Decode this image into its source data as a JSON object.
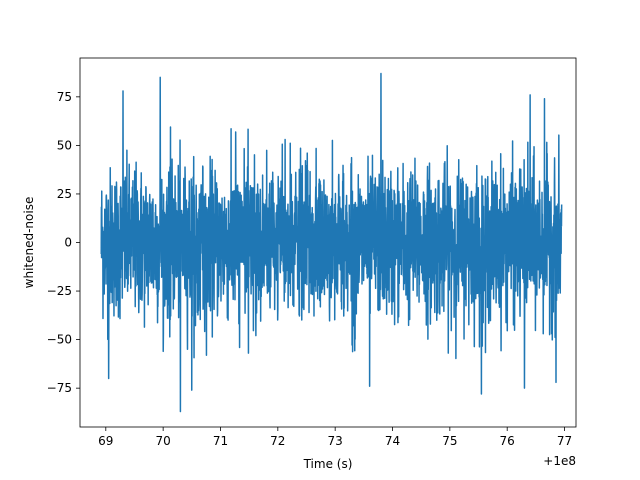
{
  "chart_data": {
    "type": "line",
    "title": "",
    "xlabel": "Time (s)",
    "ylabel": "whitened-noise",
    "x_offset_label": "+1e8",
    "xlim": [
      68.55,
      77.2
    ],
    "ylim": [
      -95,
      95
    ],
    "x_ticks": [
      {
        "value": 69,
        "label": "69"
      },
      {
        "value": 70,
        "label": "70"
      },
      {
        "value": 71,
        "label": "71"
      },
      {
        "value": 72,
        "label": "72"
      },
      {
        "value": 73,
        "label": "73"
      },
      {
        "value": 74,
        "label": "74"
      },
      {
        "value": 75,
        "label": "75"
      },
      {
        "value": 76,
        "label": "76"
      },
      {
        "value": 77,
        "label": "77"
      }
    ],
    "y_ticks": [
      {
        "value": 75,
        "label": "75"
      },
      {
        "value": 50,
        "label": "50"
      },
      {
        "value": 25,
        "label": "25"
      },
      {
        "value": 0,
        "label": "0"
      },
      {
        "value": -25,
        "label": "−25"
      },
      {
        "value": -50,
        "label": "−50"
      },
      {
        "value": -75,
        "label": "−75"
      }
    ],
    "grid": false,
    "legend": "none",
    "series": [
      {
        "color": "#1f77b4",
        "x_start": 68.92,
        "x_end": 76.95,
        "amplitude_rms": 20,
        "peaks": [
          {
            "x": 69.3,
            "y": 78
          },
          {
            "x": 69.95,
            "y": 85
          },
          {
            "x": 73.8,
            "y": 87
          },
          {
            "x": 76.4,
            "y": 76
          },
          {
            "x": 76.65,
            "y": 74
          },
          {
            "x": 70.3,
            "y": -87
          },
          {
            "x": 70.5,
            "y": -76
          },
          {
            "x": 75.55,
            "y": -78
          },
          {
            "x": 76.3,
            "y": -75
          },
          {
            "x": 76.85,
            "y": -72
          },
          {
            "x": 69.05,
            "y": -70
          },
          {
            "x": 73.6,
            "y": -74
          }
        ]
      }
    ]
  }
}
